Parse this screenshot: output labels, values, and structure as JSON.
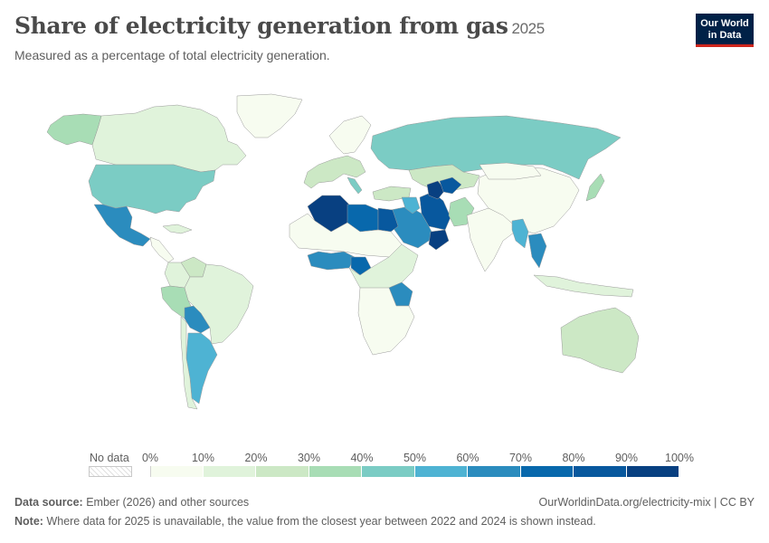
{
  "header": {
    "title": "Share of electricity generation from gas",
    "year": "2025",
    "subtitle": "Measured as a percentage of total electricity generation."
  },
  "logo": {
    "line1": "Our World",
    "line2": "in Data"
  },
  "legend": {
    "no_data_label": "No data",
    "ticks": [
      "0%",
      "10%",
      "20%",
      "30%",
      "40%",
      "50%",
      "60%",
      "70%",
      "80%",
      "90%",
      "100%"
    ],
    "colors": [
      "#f7fcf0",
      "#e0f3db",
      "#cce8c5",
      "#a8ddb5",
      "#7bccc4",
      "#4eb3d3",
      "#2b8cbe",
      "#0868ac",
      "#08589e",
      "#084081"
    ]
  },
  "footer": {
    "source_label": "Data source:",
    "source_text": "Ember (2026) and other sources",
    "url": "OurWorldinData.org/electricity-mix | CC BY",
    "note_label": "Note:",
    "note_text": "Where data for 2025 is unavailable, the value from the closest year between 2022 and 2024 is shown instead."
  },
  "map_data": {
    "type": "choropleth",
    "regions": [
      {
        "name": "Canada",
        "value": 12
      },
      {
        "name": "Alaska",
        "value": 35
      },
      {
        "name": "Greenland",
        "value": 0
      },
      {
        "name": "United States",
        "value": 40
      },
      {
        "name": "Mexico",
        "value": 60
      },
      {
        "name": "Central America",
        "value": 8
      },
      {
        "name": "Cuba",
        "value": 15
      },
      {
        "name": "Venezuela",
        "value": 25
      },
      {
        "name": "Colombia",
        "value": 12
      },
      {
        "name": "Peru",
        "value": 38
      },
      {
        "name": "Brazil",
        "value": 10
      },
      {
        "name": "Bolivia",
        "value": 68
      },
      {
        "name": "Argentina",
        "value": 55
      },
      {
        "name": "Chile",
        "value": 18
      },
      {
        "name": "Western Europe",
        "value": 20
      },
      {
        "name": "Italy",
        "value": 45
      },
      {
        "name": "Scandinavia",
        "value": 3
      },
      {
        "name": "Russia",
        "value": 45
      },
      {
        "name": "Kazakhstan",
        "value": 25
      },
      {
        "name": "Turkey",
        "value": 22
      },
      {
        "name": "Iran",
        "value": 85
      },
      {
        "name": "Turkmenistan",
        "value": 98
      },
      {
        "name": "Uzbekistan",
        "value": 80
      },
      {
        "name": "Saudi Arabia",
        "value": 62
      },
      {
        "name": "Iraq",
        "value": 55
      },
      {
        "name": "Oman",
        "value": 95
      },
      {
        "name": "Pakistan",
        "value": 30
      },
      {
        "name": "India",
        "value": 3
      },
      {
        "name": "China",
        "value": 3
      },
      {
        "name": "Mongolia",
        "value": 0
      },
      {
        "name": "Myanmar",
        "value": 55
      },
      {
        "name": "Thailand",
        "value": 65
      },
      {
        "name": "Japan",
        "value": 35
      },
      {
        "name": "Indonesia",
        "value": 15
      },
      {
        "name": "Australia",
        "value": 20
      },
      {
        "name": "Algeria",
        "value": 98
      },
      {
        "name": "Libya",
        "value": 75
      },
      {
        "name": "Egypt",
        "value": 80
      },
      {
        "name": "Sahel",
        "value": 5
      },
      {
        "name": "West Africa",
        "value": 65
      },
      {
        "name": "Nigeria",
        "value": 78
      },
      {
        "name": "Central Africa",
        "value": 10
      },
      {
        "name": "Tanzania",
        "value": 60
      },
      {
        "name": "Southern Africa",
        "value": 3
      }
    ]
  }
}
